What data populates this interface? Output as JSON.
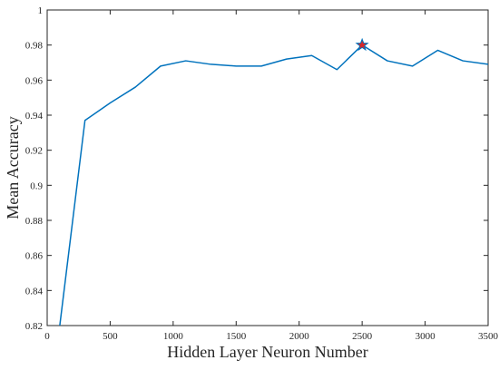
{
  "chart_data": {
    "type": "line",
    "title": "",
    "xlabel": "Hidden Layer Neuron Number",
    "ylabel": "Mean Accuracy",
    "xlim": [
      0,
      3500
    ],
    "ylim": [
      0.82,
      1.0
    ],
    "xticks": [
      0,
      500,
      1000,
      1500,
      2000,
      2500,
      3000,
      3500
    ],
    "yticks": [
      0.82,
      0.84,
      0.86,
      0.88,
      0.9,
      0.92,
      0.94,
      0.96,
      0.98,
      1.0
    ],
    "xtick_labels": [
      "0",
      "500",
      "1000",
      "1500",
      "2000",
      "2500",
      "3000",
      "3500"
    ],
    "ytick_labels": [
      "0.82",
      "0.84",
      "0.86",
      "0.88",
      "0.9",
      "0.92",
      "0.94",
      "0.96",
      "0.98",
      "1"
    ],
    "grid": false,
    "series": [
      {
        "color": "#0072BD",
        "x": [
          100,
          300,
          500,
          700,
          900,
          1100,
          1300,
          1500,
          1700,
          1900,
          2100,
          2300,
          2500,
          2700,
          2900,
          3100,
          3300,
          3500
        ],
        "y": [
          0.82,
          0.937,
          0.947,
          0.956,
          0.968,
          0.971,
          0.969,
          0.968,
          0.968,
          0.972,
          0.974,
          0.966,
          0.98,
          0.971,
          0.968,
          0.977,
          0.971,
          0.969
        ]
      }
    ],
    "markers": [
      {
        "x": 2500,
        "y": 0.98,
        "shape": "star",
        "color": "#D62728",
        "edge_color": "#0072BD"
      }
    ]
  }
}
